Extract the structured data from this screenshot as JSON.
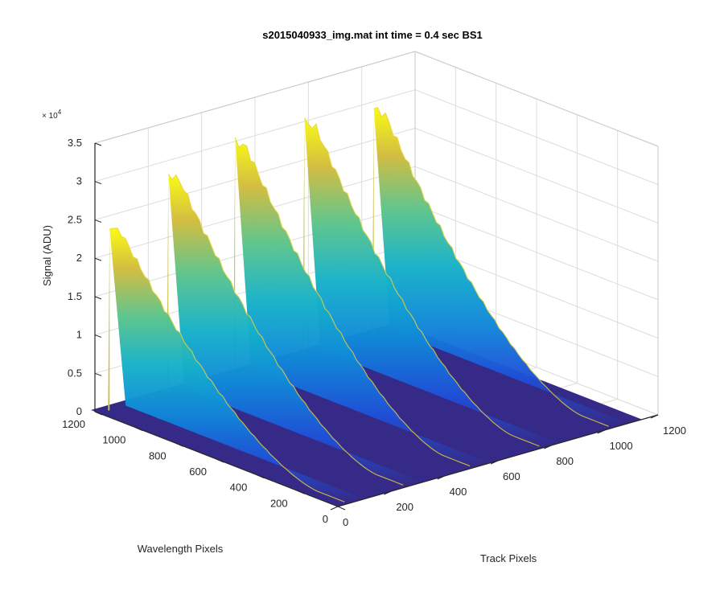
{
  "chart_data": {
    "type": "surface3d",
    "title": "s2015040933_img.mat int time = 0.4 sec   BS1",
    "xlabel": "Track Pixels",
    "ylabel": "Wavelength Pixels",
    "zlabel": "Signal (ADU)",
    "z_exponent_label": "× 10",
    "z_exponent_power": "4",
    "x_ticks": [
      "0",
      "200",
      "400",
      "600",
      "800",
      "1000",
      "1200"
    ],
    "y_ticks": [
      "0",
      "200",
      "400",
      "600",
      "800",
      "1000",
      "1200"
    ],
    "z_ticks": [
      "0",
      "0.5",
      "1",
      "1.5",
      "2",
      "2.5",
      "3",
      "3.5"
    ],
    "xlim": [
      0,
      1200
    ],
    "ylim": [
      0,
      1200
    ],
    "zlim": [
      0,
      35000
    ],
    "grid": true,
    "colormap": "parula",
    "series": [
      {
        "track_center": 40,
        "peak_signal": 26000
      },
      {
        "track_center": 260,
        "peak_signal": 31000
      },
      {
        "track_center": 510,
        "peak_signal": 33000
      },
      {
        "track_center": 770,
        "peak_signal": 33000
      },
      {
        "track_center": 1030,
        "peak_signal": 32000
      }
    ],
    "colors": {
      "low": "#352a87",
      "mid": "#1198dd",
      "teal": "#2fb8a0",
      "high": "#f9fb0e"
    }
  }
}
